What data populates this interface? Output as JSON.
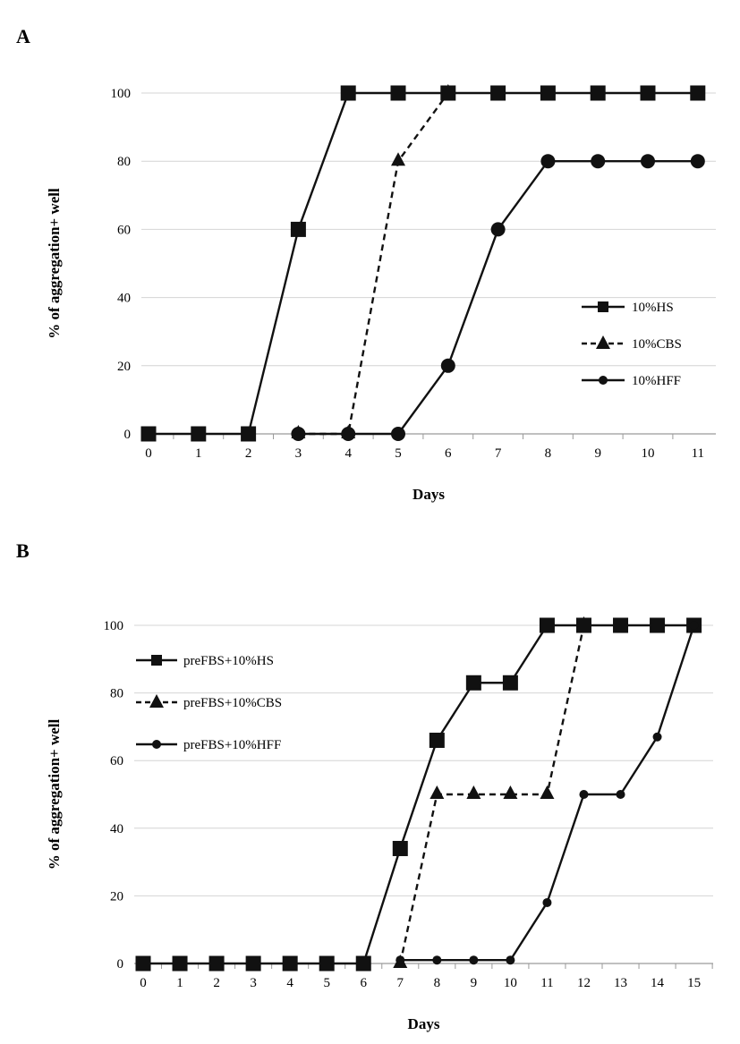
{
  "chart_data": [
    {
      "panel": "A",
      "type": "line",
      "xlabel": "Days",
      "ylabel": "% of aggregation+ well",
      "ylim": [
        0,
        100
      ],
      "yticks": [
        0,
        20,
        40,
        60,
        80,
        100
      ],
      "x": [
        0,
        1,
        2,
        3,
        4,
        5,
        6,
        7,
        8,
        9,
        10,
        11
      ],
      "grid": true,
      "legend": "right",
      "series": [
        {
          "name": "10%HS",
          "marker": "square",
          "style": "solid",
          "x": [
            0,
            1,
            2,
            3,
            4,
            5,
            6,
            7,
            8,
            9,
            10,
            11
          ],
          "values": [
            0,
            0,
            0,
            60,
            100,
            100,
            100,
            100,
            100,
            100,
            100,
            100
          ]
        },
        {
          "name": "10%CBS",
          "marker": "triangle",
          "style": "dashed",
          "x": [
            3,
            4,
            5,
            6
          ],
          "values": [
            0,
            0,
            80,
            100
          ]
        },
        {
          "name": "10%HFF",
          "marker": "circle",
          "style": "solid",
          "x": [
            3,
            4,
            5,
            6,
            7,
            8,
            9,
            10,
            11
          ],
          "values": [
            0,
            0,
            0,
            20,
            60,
            80,
            80,
            80,
            80
          ]
        }
      ]
    },
    {
      "panel": "B",
      "type": "line",
      "xlabel": "Days",
      "ylabel": "% of aggregation+ well",
      "ylim": [
        0,
        100
      ],
      "yticks": [
        0,
        20,
        40,
        60,
        80,
        100
      ],
      "x": [
        0,
        1,
        2,
        3,
        4,
        5,
        6,
        7,
        8,
        9,
        10,
        11,
        12,
        13,
        14,
        15
      ],
      "grid": true,
      "legend": "top-left",
      "series": [
        {
          "name": "preFBS+10%HS",
          "marker": "square",
          "style": "solid",
          "x": [
            0,
            1,
            2,
            3,
            4,
            5,
            6,
            7,
            8,
            9,
            10,
            11,
            12,
            13,
            14,
            15
          ],
          "values": [
            0,
            0,
            0,
            0,
            0,
            0,
            0,
            34,
            66,
            83,
            83,
            100,
            100,
            100,
            100,
            100
          ]
        },
        {
          "name": "preFBS+10%CBS",
          "marker": "triangle",
          "style": "dashed",
          "x": [
            7,
            8,
            9,
            10,
            11,
            12
          ],
          "values": [
            0,
            50,
            50,
            50,
            50,
            100
          ]
        },
        {
          "name": "preFBS+10%HFF",
          "marker": "circle-small",
          "style": "solid",
          "x": [
            7,
            8,
            9,
            10,
            11,
            12,
            13,
            14,
            15
          ],
          "values": [
            1,
            1,
            1,
            1,
            18,
            50,
            50,
            67,
            100
          ]
        }
      ]
    }
  ]
}
